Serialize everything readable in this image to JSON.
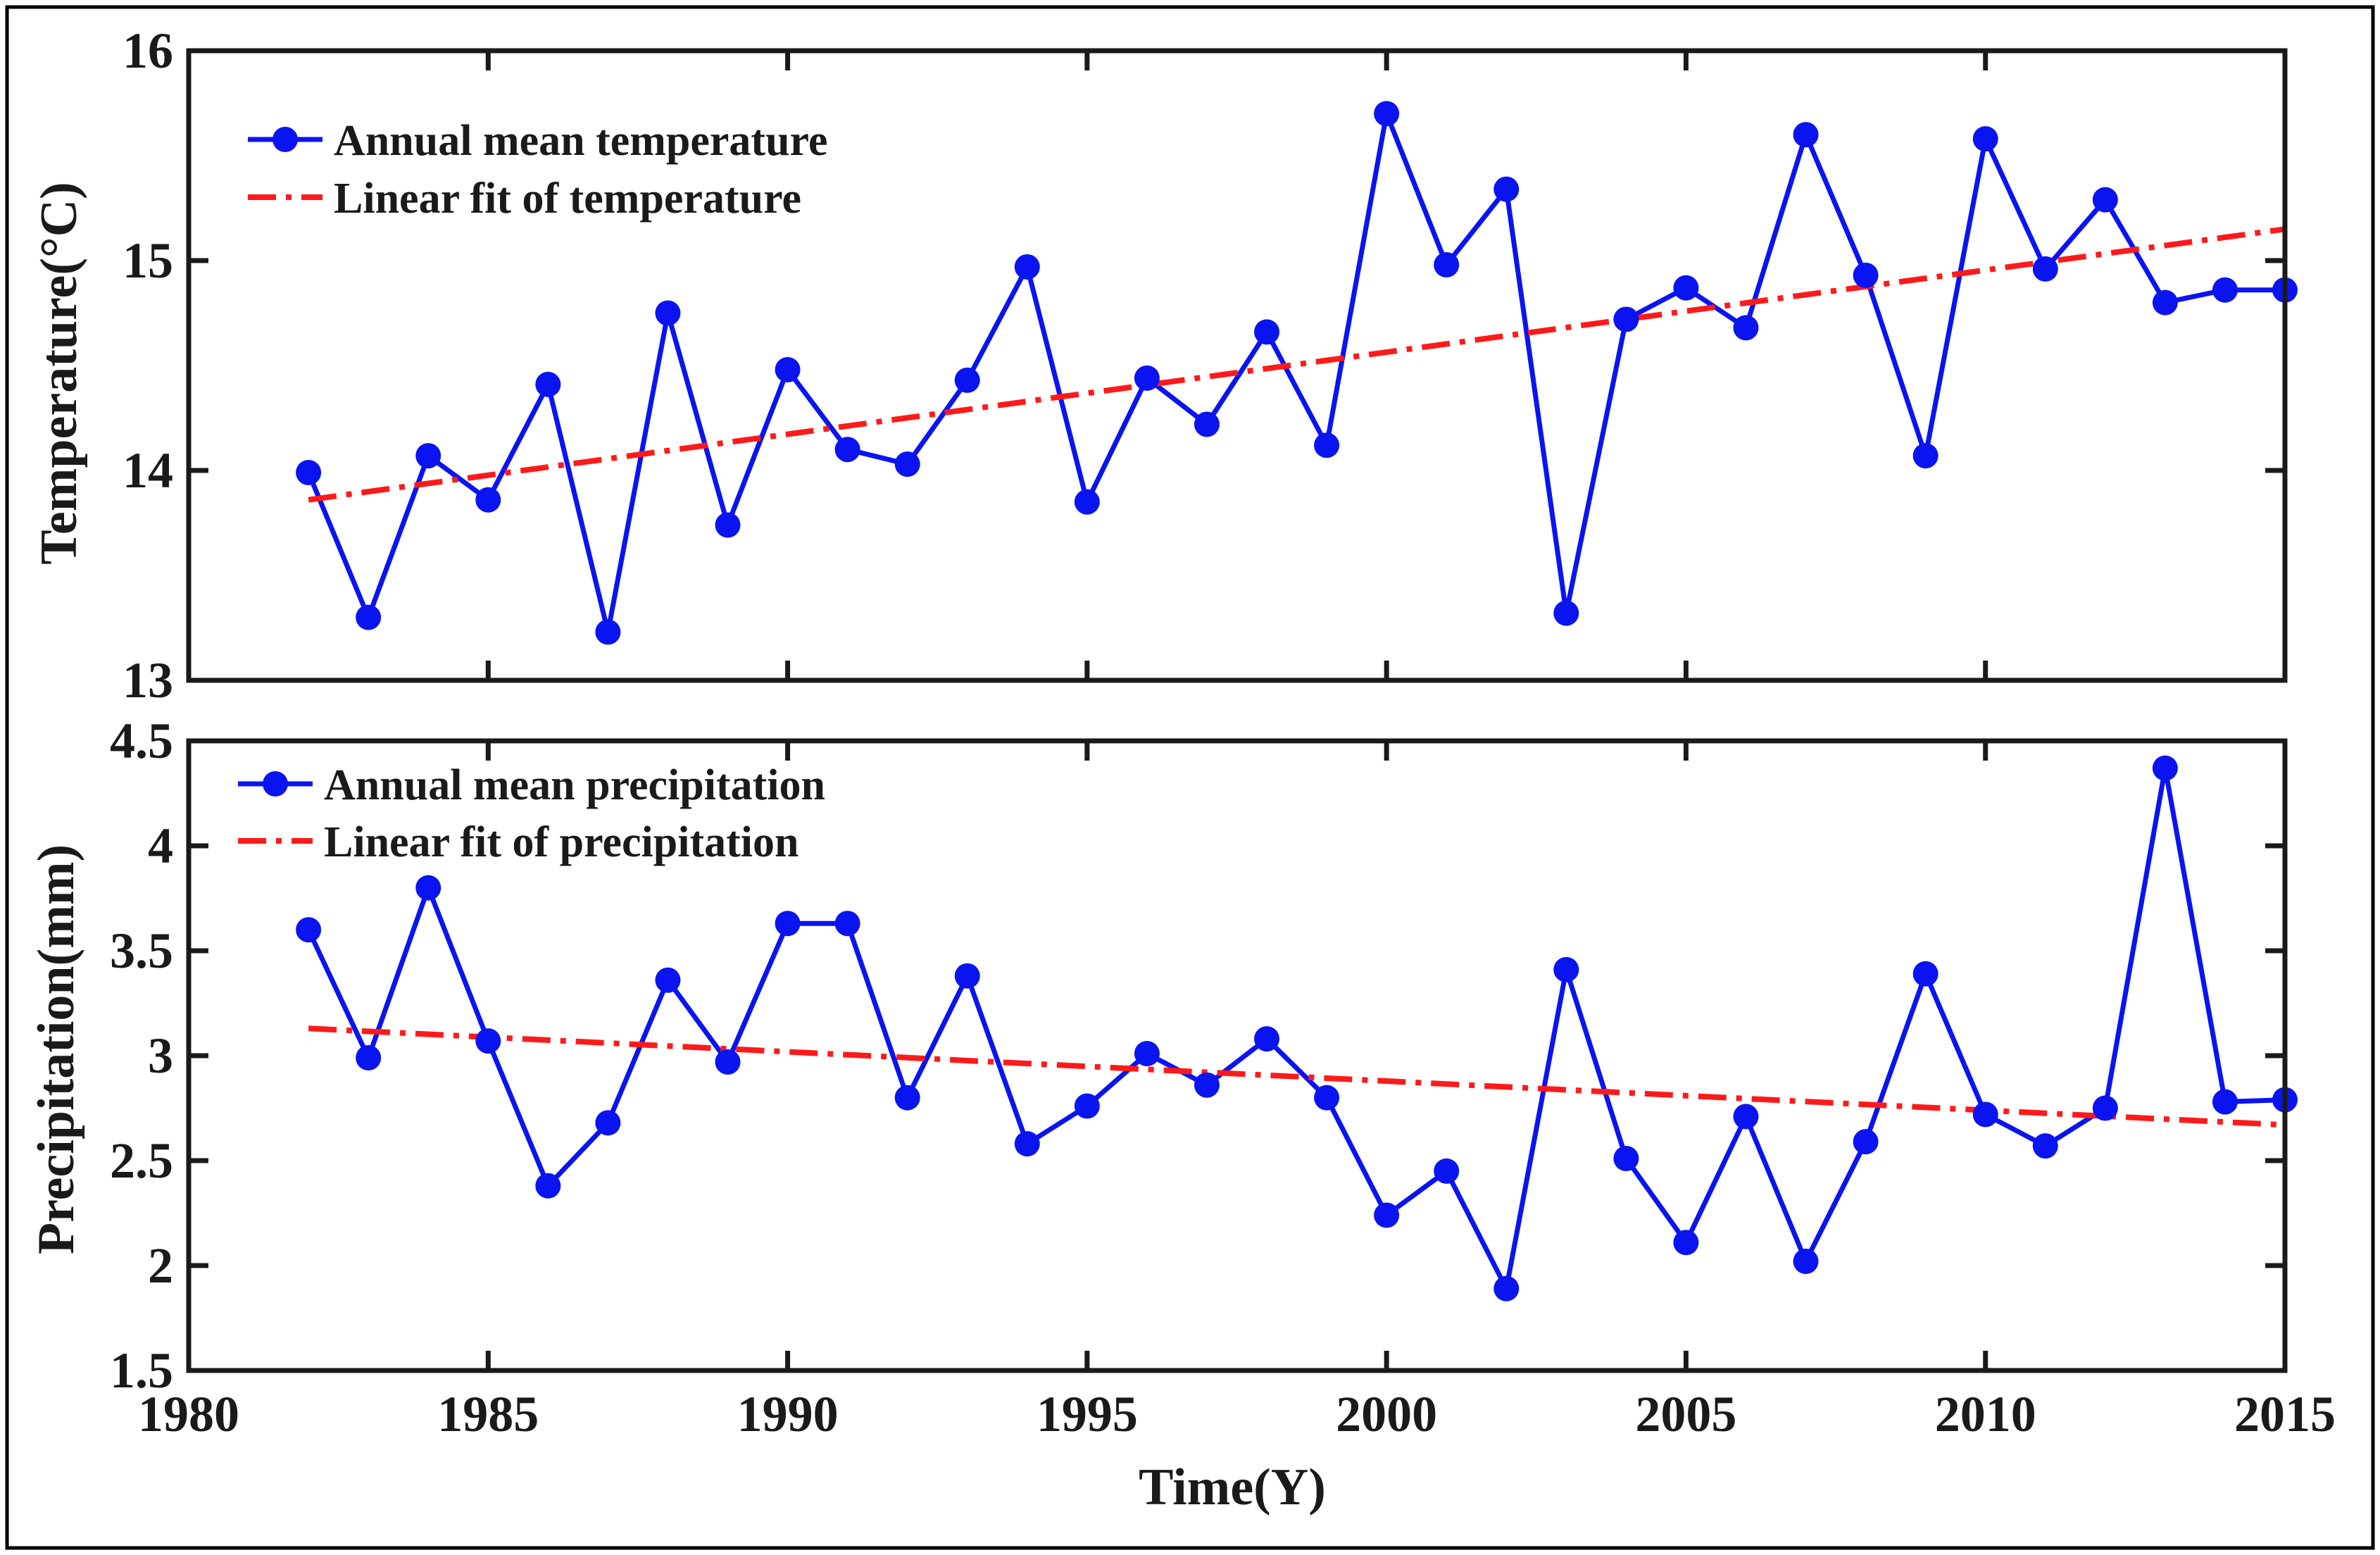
{
  "colors": {
    "series": "#0a14f0",
    "fit": "#ff1a1a",
    "axis": "#1a1a1a",
    "frame": "#000000"
  },
  "chart_data": [
    {
      "id": "temperature",
      "type": "line",
      "title": "",
      "xlabel": "",
      "ylabel": "Temperature(°C)",
      "xlim": [
        1980,
        2015
      ],
      "ylim": [
        13,
        16
      ],
      "yticks": [
        13,
        14,
        15,
        16
      ],
      "ytick_labels": [
        "13",
        "14",
        "15",
        "16"
      ],
      "xticks": [
        1980,
        1985,
        1990,
        1995,
        2000,
        2005,
        2010,
        2015
      ],
      "grid": false,
      "legend_position": "top-left",
      "x": [
        1982,
        1983,
        1984,
        1985,
        1986,
        1987,
        1988,
        1989,
        1990,
        1991,
        1992,
        1993,
        1994,
        1995,
        1996,
        1997,
        1998,
        1999,
        2000,
        2001,
        2002,
        2003,
        2004,
        2005,
        2006,
        2007,
        2008,
        2009,
        2010,
        2011,
        2012,
        2013,
        2014,
        2015
      ],
      "series": [
        {
          "name": "Annual mean temperature",
          "style": "line-marker",
          "values": [
            13.99,
            13.3,
            14.07,
            13.86,
            14.41,
            13.23,
            14.75,
            13.74,
            14.48,
            14.1,
            14.03,
            14.43,
            14.97,
            13.85,
            14.44,
            14.22,
            14.66,
            14.12,
            15.7,
            14.98,
            15.34,
            13.32,
            14.72,
            14.87,
            14.68,
            15.6,
            14.93,
            14.07,
            15.58,
            14.96,
            15.29,
            14.8,
            14.86,
            14.86
          ]
        },
        {
          "name": "Linear fit of temperature",
          "style": "dash-dot",
          "fit_x": [
            1982,
            2015
          ],
          "fit_y": [
            13.86,
            15.15
          ]
        }
      ]
    },
    {
      "id": "precipitation",
      "type": "line",
      "title": "",
      "xlabel": "Time(Y)",
      "ylabel": "Precipitation(mm)",
      "xlim": [
        1980,
        2015
      ],
      "ylim": [
        1.5,
        4.5
      ],
      "yticks": [
        1.5,
        2,
        2.5,
        3,
        3.5,
        4,
        4.5
      ],
      "ytick_labels": [
        "1.5",
        "2",
        "2.5",
        "3",
        "3.5",
        "4",
        "4.5"
      ],
      "xticks": [
        1980,
        1985,
        1990,
        1995,
        2000,
        2005,
        2010,
        2015
      ],
      "xtick_labels": [
        "1980",
        "1985",
        "1990",
        "1995",
        "2000",
        "2005",
        "2010",
        "2015"
      ],
      "grid": false,
      "legend_position": "top-left",
      "x": [
        1982,
        1983,
        1984,
        1985,
        1986,
        1987,
        1988,
        1989,
        1990,
        1991,
        1992,
        1993,
        1994,
        1995,
        1996,
        1997,
        1998,
        1999,
        2000,
        2001,
        2002,
        2003,
        2004,
        2005,
        2006,
        2007,
        2008,
        2009,
        2010,
        2011,
        2012,
        2013,
        2014,
        2015
      ],
      "series": [
        {
          "name": "Annual mean precipitation",
          "style": "line-marker",
          "values": [
            3.6,
            2.99,
            3.8,
            3.07,
            2.38,
            2.68,
            3.36,
            2.97,
            3.63,
            3.63,
            2.8,
            3.38,
            2.58,
            2.76,
            3.01,
            2.86,
            3.08,
            2.8,
            2.24,
            2.45,
            1.89,
            3.41,
            2.51,
            2.11,
            2.71,
            2.02,
            2.59,
            3.39,
            2.72,
            2.57,
            2.75,
            4.37,
            2.78,
            2.79
          ]
        },
        {
          "name": "Linear fit of precipitation",
          "style": "dash-dot",
          "fit_x": [
            1982,
            2015
          ],
          "fit_y": [
            3.13,
            2.67
          ]
        }
      ]
    }
  ]
}
